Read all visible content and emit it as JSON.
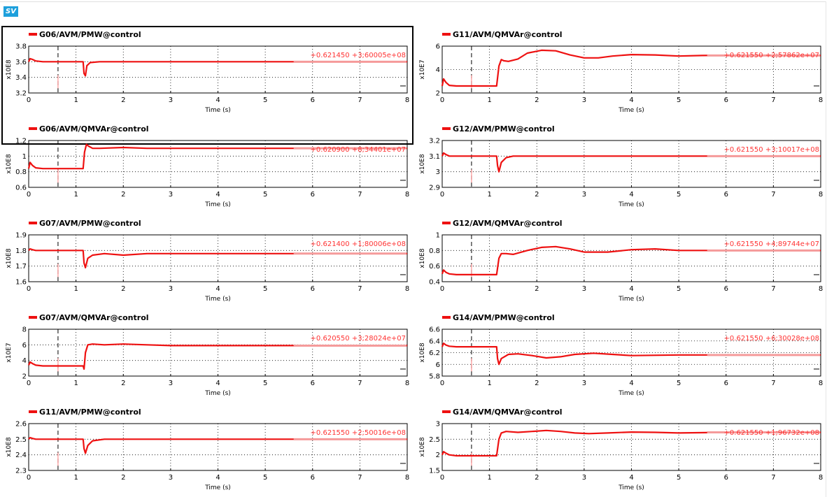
{
  "badge": "SV",
  "colors": {
    "trace": "#ee1111",
    "cursor_value": "#ff3333",
    "grid": "#000000",
    "frame": "#000000"
  },
  "chart_data": [
    {
      "type": "line",
      "legend": "G06/AVM/PMW@control",
      "ylabel": "x10E8",
      "xlabel": "Time (s)",
      "xlim": [
        0,
        8
      ],
      "ylim": [
        3.2,
        3.8
      ],
      "xticks": [
        "0",
        "1",
        "2",
        "3",
        "4",
        "5",
        "6",
        "7",
        "8"
      ],
      "yticks": [
        "3.2",
        "3.4",
        "3.6",
        "3.8"
      ],
      "cursor_x": 0.62,
      "cursor_readout": "+0.621450 +3;60005e+08",
      "selected": true,
      "series": [
        {
          "x": [
            0,
            0.03,
            0.08,
            0.15,
            0.3,
            1.15,
            1.17,
            1.2,
            1.23,
            1.3,
            1.5,
            2,
            8
          ],
          "y": [
            3.6,
            3.64,
            3.63,
            3.61,
            3.6,
            3.6,
            3.45,
            3.42,
            3.55,
            3.59,
            3.6,
            3.6,
            3.6
          ]
        }
      ]
    },
    {
      "type": "line",
      "legend": "G11/AVM/QMVAr@control",
      "ylabel": "x10E7",
      "xlabel": "Time (s)",
      "xlim": [
        0,
        8
      ],
      "ylim": [
        2,
        6
      ],
      "xticks": [
        "0",
        "1",
        "2",
        "3",
        "4",
        "5",
        "6",
        "7",
        "8"
      ],
      "yticks": [
        "2",
        "4",
        "6"
      ],
      "cursor_x": 0.62,
      "cursor_readout": "+0.621550 +2;57862e+07",
      "selected": false,
      "series": [
        {
          "x": [
            0,
            0.03,
            0.08,
            0.15,
            0.3,
            1.15,
            1.2,
            1.25,
            1.3,
            1.4,
            1.6,
            1.8,
            2.1,
            2.4,
            2.7,
            3,
            3.3,
            3.6,
            4,
            4.5,
            5,
            5.5,
            6,
            7,
            8
          ],
          "y": [
            2.6,
            3.2,
            2.9,
            2.65,
            2.6,
            2.6,
            4.3,
            4.85,
            4.75,
            4.7,
            4.9,
            5.4,
            5.65,
            5.6,
            5.25,
            5.0,
            5.0,
            5.15,
            5.28,
            5.25,
            5.15,
            5.2,
            5.22,
            5.2,
            5.2
          ]
        }
      ]
    },
    {
      "type": "line",
      "legend": "G06/AVM/QMVAr@control",
      "ylabel": "x10E8",
      "xlabel": "Time (s)",
      "xlim": [
        0,
        8
      ],
      "ylim": [
        0.6,
        1.2
      ],
      "xticks": [
        "0",
        "1",
        "2",
        "3",
        "4",
        "5",
        "6",
        "7",
        "8"
      ],
      "yticks": [
        "0.6",
        "0.8",
        "1",
        "1.2"
      ],
      "cursor_x": 0.62,
      "cursor_readout": "+0.620900 +8;34401e+07",
      "selected": false,
      "series": [
        {
          "x": [
            0,
            0.03,
            0.08,
            0.15,
            0.3,
            1.15,
            1.18,
            1.22,
            1.26,
            1.35,
            1.5,
            2,
            2.5,
            3,
            4,
            5,
            6,
            7,
            8
          ],
          "y": [
            0.84,
            0.92,
            0.88,
            0.85,
            0.84,
            0.84,
            1.05,
            1.15,
            1.13,
            1.1,
            1.1,
            1.11,
            1.1,
            1.1,
            1.1,
            1.1,
            1.1,
            1.1,
            1.1
          ]
        }
      ]
    },
    {
      "type": "line",
      "legend": "G12/AVM/PMW@control",
      "ylabel": "x10E8",
      "xlabel": "Time (s)",
      "xlim": [
        0,
        8
      ],
      "ylim": [
        2.9,
        3.2
      ],
      "xticks": [
        "0",
        "1",
        "2",
        "3",
        "4",
        "5",
        "6",
        "7",
        "8"
      ],
      "yticks": [
        "2.9",
        "3",
        "3.1",
        "3.2"
      ],
      "cursor_x": 0.62,
      "cursor_readout": "+0.621550 +3;10017e+08",
      "selected": false,
      "series": [
        {
          "x": [
            0,
            0.03,
            0.08,
            0.15,
            0.3,
            1.15,
            1.17,
            1.2,
            1.25,
            1.35,
            1.5,
            2,
            3,
            4,
            5,
            6,
            7,
            8
          ],
          "y": [
            3.1,
            3.12,
            3.11,
            3.1,
            3.1,
            3.1,
            3.04,
            3.0,
            3.06,
            3.09,
            3.1,
            3.1,
            3.1,
            3.1,
            3.1,
            3.1,
            3.1,
            3.1
          ]
        }
      ]
    },
    {
      "type": "line",
      "legend": "G07/AVM/PMW@control",
      "ylabel": "x10E8",
      "xlabel": "Time (s)",
      "xlim": [
        0,
        8
      ],
      "ylim": [
        1.6,
        1.9
      ],
      "xticks": [
        "0",
        "1",
        "2",
        "3",
        "4",
        "5",
        "6",
        "7",
        "8"
      ],
      "yticks": [
        "1.6",
        "1.7",
        "1.8",
        "1.9"
      ],
      "cursor_x": 0.62,
      "cursor_readout": "+0.621400 +1;80006e+08",
      "selected": false,
      "series": [
        {
          "x": [
            0,
            0.03,
            0.08,
            0.15,
            0.3,
            1.15,
            1.17,
            1.2,
            1.25,
            1.35,
            1.6,
            2,
            2.5,
            3,
            4,
            5,
            6,
            7,
            8
          ],
          "y": [
            1.8,
            1.81,
            1.805,
            1.8,
            1.8,
            1.8,
            1.72,
            1.69,
            1.75,
            1.77,
            1.78,
            1.77,
            1.78,
            1.78,
            1.78,
            1.78,
            1.78,
            1.78,
            1.78
          ]
        }
      ]
    },
    {
      "type": "line",
      "legend": "G12/AVM/QMVAr@control",
      "ylabel": "x10E8",
      "xlabel": "Time (s)",
      "xlim": [
        0,
        8
      ],
      "ylim": [
        0.4,
        1
      ],
      "xticks": [
        "0",
        "1",
        "2",
        "3",
        "4",
        "5",
        "6",
        "7",
        "8"
      ],
      "yticks": [
        "0.4",
        "0.6",
        "0.8",
        "1"
      ],
      "cursor_x": 0.62,
      "cursor_readout": "+0.621550 +4;89744e+07",
      "selected": false,
      "series": [
        {
          "x": [
            0,
            0.03,
            0.08,
            0.15,
            0.3,
            1.15,
            1.2,
            1.25,
            1.35,
            1.5,
            1.8,
            2.1,
            2.4,
            2.7,
            3,
            3.5,
            4,
            4.5,
            5,
            6,
            7,
            8
          ],
          "y": [
            0.5,
            0.55,
            0.52,
            0.5,
            0.49,
            0.49,
            0.7,
            0.76,
            0.76,
            0.75,
            0.8,
            0.84,
            0.85,
            0.82,
            0.78,
            0.78,
            0.81,
            0.82,
            0.8,
            0.8,
            0.8,
            0.8
          ]
        }
      ]
    },
    {
      "type": "line",
      "legend": "G07/AVM/QMVAr@control",
      "ylabel": "x10E7",
      "xlabel": "Time (s)",
      "xlim": [
        0,
        8
      ],
      "ylim": [
        2,
        8
      ],
      "xticks": [
        "0",
        "1",
        "2",
        "3",
        "4",
        "5",
        "6",
        "7",
        "8"
      ],
      "yticks": [
        "2",
        "4",
        "6",
        "8"
      ],
      "cursor_x": 0.62,
      "cursor_readout": "+0.620550 +3;28024e+07",
      "selected": false,
      "series": [
        {
          "x": [
            0,
            0.03,
            0.08,
            0.15,
            0.3,
            1.15,
            1.17,
            1.2,
            1.25,
            1.35,
            1.6,
            2,
            2.5,
            3,
            4,
            5,
            6,
            7,
            8
          ],
          "y": [
            3.4,
            3.8,
            3.6,
            3.4,
            3.3,
            3.3,
            2.9,
            5.0,
            6.0,
            6.1,
            6.0,
            6.1,
            6.0,
            5.9,
            5.9,
            5.9,
            5.9,
            5.9,
            5.9
          ]
        }
      ]
    },
    {
      "type": "line",
      "legend": "G14/AVM/PMW@control",
      "ylabel": "x10E8",
      "xlabel": "Time (s)",
      "xlim": [
        0,
        8
      ],
      "ylim": [
        5.8,
        6.6
      ],
      "xticks": [
        "0",
        "1",
        "2",
        "3",
        "4",
        "5",
        "6",
        "7",
        "8"
      ],
      "yticks": [
        "5.8",
        "6",
        "6.2",
        "6.4",
        "6.6"
      ],
      "cursor_x": 0.62,
      "cursor_readout": "+0.621550 +6;30028e+08",
      "selected": false,
      "series": [
        {
          "x": [
            0,
            0.03,
            0.08,
            0.15,
            0.3,
            1.15,
            1.17,
            1.2,
            1.25,
            1.4,
            1.6,
            1.9,
            2.2,
            2.5,
            2.8,
            3.2,
            3.6,
            4,
            5,
            6,
            7,
            8
          ],
          "y": [
            6.3,
            6.36,
            6.33,
            6.31,
            6.3,
            6.3,
            6.1,
            6.0,
            6.1,
            6.17,
            6.18,
            6.15,
            6.11,
            6.13,
            6.17,
            6.19,
            6.17,
            6.15,
            6.16,
            6.16,
            6.16,
            6.16
          ]
        }
      ]
    },
    {
      "type": "line",
      "legend": "G11/AVM/PMW@control",
      "ylabel": "x10E8",
      "xlabel": "Time (s)",
      "xlim": [
        0,
        8
      ],
      "ylim": [
        2.3,
        2.6
      ],
      "xticks": [
        "0",
        "1",
        "2",
        "3",
        "4",
        "5",
        "6",
        "7",
        "8"
      ],
      "yticks": [
        "2.3",
        "2.4",
        "2.5",
        "2.6"
      ],
      "cursor_x": 0.62,
      "cursor_readout": "+0.621550 +2;50016e+08",
      "selected": false,
      "series": [
        {
          "x": [
            0,
            0.03,
            0.08,
            0.15,
            0.3,
            1.15,
            1.17,
            1.2,
            1.25,
            1.35,
            1.6,
            2,
            3,
            4,
            5,
            6,
            7,
            8
          ],
          "y": [
            2.5,
            2.51,
            2.505,
            2.5,
            2.5,
            2.5,
            2.44,
            2.41,
            2.46,
            2.49,
            2.5,
            2.5,
            2.5,
            2.5,
            2.5,
            2.5,
            2.5,
            2.5
          ]
        }
      ]
    },
    {
      "type": "line",
      "legend": "G14/AVM/QMVAr@control",
      "ylabel": "x10E8",
      "xlabel": "Time (s)",
      "xlim": [
        0,
        8
      ],
      "ylim": [
        1.5,
        3
      ],
      "xticks": [
        "0",
        "1",
        "2",
        "3",
        "4",
        "5",
        "6",
        "7",
        "8"
      ],
      "yticks": [
        "1.5",
        "2",
        "2.5",
        "3"
      ],
      "cursor_x": 0.62,
      "cursor_readout": "+0.621550 +1;96732e+08",
      "selected": false,
      "series": [
        {
          "x": [
            0,
            0.03,
            0.08,
            0.15,
            0.3,
            1.15,
            1.2,
            1.25,
            1.35,
            1.6,
            1.9,
            2.2,
            2.5,
            2.8,
            3.1,
            3.5,
            4,
            4.5,
            5,
            6,
            7,
            8
          ],
          "y": [
            2.0,
            2.1,
            2.05,
            2.0,
            1.97,
            1.97,
            2.5,
            2.7,
            2.75,
            2.72,
            2.75,
            2.78,
            2.75,
            2.7,
            2.68,
            2.7,
            2.73,
            2.72,
            2.7,
            2.72,
            2.72,
            2.72
          ]
        }
      ]
    }
  ]
}
